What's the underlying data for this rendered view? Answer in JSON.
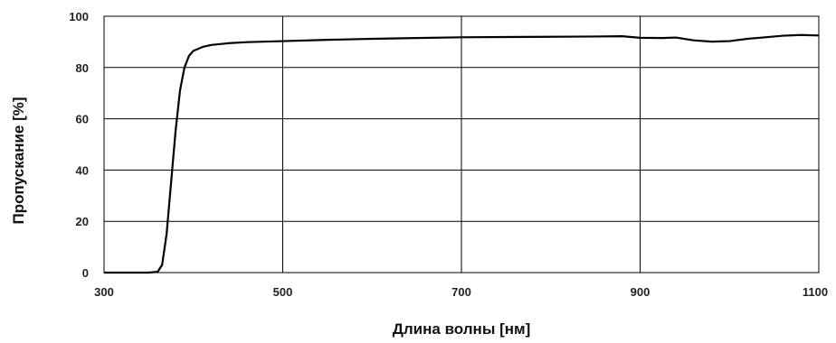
{
  "chart_data": {
    "type": "line",
    "xlabel": "Длина волны [нм]",
    "ylabel": "Пропускание [%]",
    "xlim": [
      300,
      1100
    ],
    "ylim": [
      0,
      100
    ],
    "xticks": [
      300,
      500,
      700,
      900,
      1100
    ],
    "yticks": [
      0,
      20,
      40,
      60,
      80,
      100
    ],
    "grid": true,
    "legend": "none",
    "line_color": "#000000",
    "series": [
      {
        "x": [
          300,
          350,
          360,
          365,
          370,
          375,
          380,
          385,
          390,
          395,
          400,
          410,
          420,
          440,
          460,
          500,
          550,
          600,
          650,
          700,
          750,
          800,
          850,
          880,
          900,
          925,
          940,
          960,
          980,
          1000,
          1020,
          1040,
          1060,
          1080,
          1100
        ],
        "y": [
          0,
          0,
          0.3,
          3,
          15,
          35,
          55,
          71,
          80,
          84.5,
          86.5,
          88,
          88.8,
          89.5,
          89.9,
          90.3,
          90.8,
          91.2,
          91.5,
          91.8,
          91.9,
          92.0,
          92.1,
          92.2,
          91.6,
          91.5,
          91.7,
          90.6,
          90.1,
          90.3,
          91.2,
          91.8,
          92.4,
          92.7,
          92.5
        ]
      }
    ]
  }
}
